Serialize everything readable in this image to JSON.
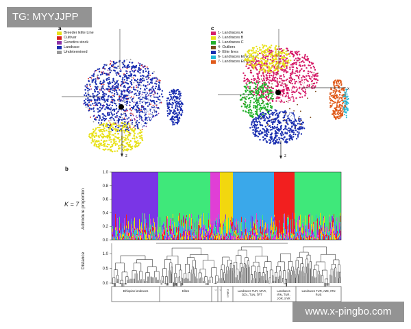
{
  "watermarks": {
    "top": "TG: MYYJJPP",
    "bottom": "www.x-pingbo.com"
  },
  "panel_a": {
    "letter": "a",
    "axis_label": "z",
    "legend": [
      {
        "label": "Breeder Elite Line",
        "color": "#e8e11a"
      },
      {
        "label": "Cultivar",
        "color": "#d61f1f"
      },
      {
        "label": "Genetics stock",
        "color": "#8b2fa6"
      },
      {
        "label": "Landrace",
        "color": "#1b2fb0"
      },
      {
        "label": "Undetermined",
        "color": "#9a9a9a"
      }
    ]
  },
  "panel_c": {
    "letter": "c",
    "axis_label_z": "z",
    "axis_label_x": "x",
    "legend": [
      {
        "label": "1- Landraces A",
        "color": "#d61f6a"
      },
      {
        "label": "2- Landraces B",
        "color": "#e8e11a"
      },
      {
        "label": "3- Landraces C",
        "color": "#23b02a"
      },
      {
        "label": "4- Outliers",
        "color": "#7a4a1a"
      },
      {
        "label": "5- Elite lines",
        "color": "#1b2fb0"
      },
      {
        "label": "6- Landraces Ethiopia 2",
        "color": "#22b8d8"
      },
      {
        "label": "7- Landraces Ethiopia 1",
        "color": "#e05a1a"
      }
    ]
  },
  "panel_b": {
    "letter": "b",
    "k_label": "K = 7",
    "admixture_ylabel": "Admixture proportion",
    "distance_ylabel": "Distance",
    "admixture_ticks": [
      "0.0",
      "0.2",
      "0.4",
      "0.6",
      "0.8",
      "1.0"
    ],
    "distance_ticks": [
      "0.0",
      "0.5",
      "1.0"
    ],
    "groups": [
      {
        "label": "Ethiopian landraces",
        "lines": [
          "Ethiopian landraces"
        ]
      },
      {
        "label": "Elites",
        "lines": [
          "Elites"
        ]
      },
      {
        "label": "?",
        "lines": [
          "?"
        ]
      },
      {
        "label": "?",
        "lines": [
          "?"
        ]
      },
      {
        "label": "Outliers",
        "lines": [
          "Outliers"
        ]
      },
      {
        "label": "Landraces TUR, MAR, DZA, TUN, FRT",
        "lines": [
          "Landraces TUR, MAR,",
          "DZA, TUN, FRT"
        ]
      },
      {
        "label": "Landraces IRN, TUR, JOR, SYR",
        "lines": [
          "Landraces",
          "IRN, TUR,",
          "JOR, SYR"
        ]
      },
      {
        "label": "Landraces TUR, AZE, IRN RUS",
        "lines": [
          "Landraces TUR, AZE, IRN",
          "RUS"
        ]
      }
    ],
    "colors": {
      "purple": "#7a35e6",
      "green": "#3fe87a",
      "magenta": "#e03fd6",
      "yellow": "#f2d70f",
      "blue": "#3aa8ea",
      "red": "#f21f1f"
    }
  }
}
